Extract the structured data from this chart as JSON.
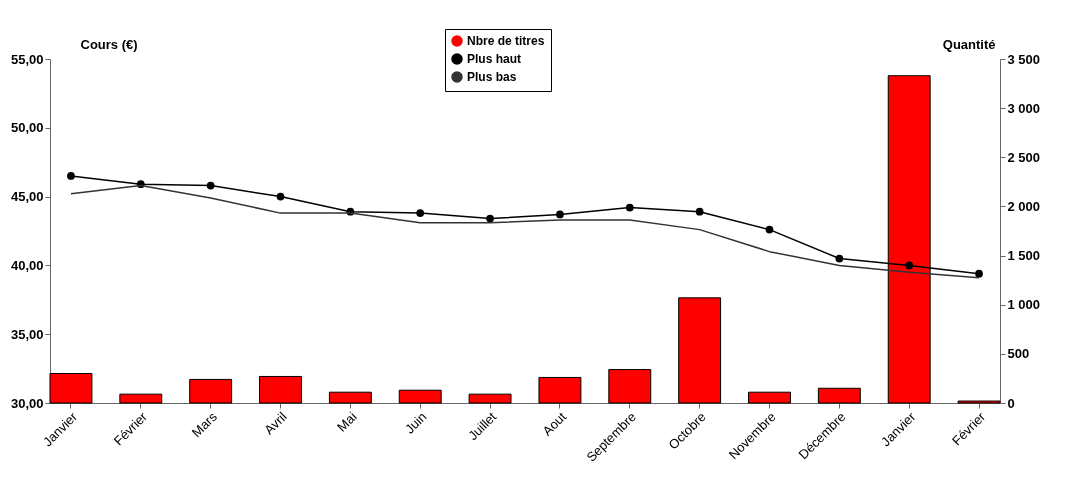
{
  "chart_data": {
    "type": "line",
    "categories": [
      "Janvier",
      "Février",
      "Mars",
      "Avril",
      "Mai",
      "Juin",
      "Juillet",
      "Aout",
      "Septembre",
      "Octobre",
      "Novembre",
      "Décembre",
      "Janvier",
      "Février"
    ],
    "ylabel": "Cours (€)",
    "y2label": "Quantité",
    "series": [
      {
        "name": "Nbre de titres",
        "type": "bar",
        "axis": "y2",
        "color": "#ff0000",
        "values": [
          300,
          90,
          240,
          270,
          110,
          130,
          90,
          260,
          340,
          1070,
          110,
          150,
          3330,
          20
        ]
      },
      {
        "name": "Plus haut",
        "marker": "circle",
        "color": "#000000",
        "values": [
          46.5,
          45.9,
          45.8,
          45.0,
          43.9,
          43.8,
          43.4,
          43.7,
          44.2,
          43.9,
          42.6,
          40.5,
          40.0,
          39.4
        ]
      },
      {
        "name": "Plus bas",
        "marker": "none",
        "color": "#333333",
        "values": [
          45.2,
          45.8,
          44.9,
          43.8,
          43.8,
          43.1,
          43.1,
          43.3,
          43.3,
          42.6,
          41.0,
          40.0,
          39.5,
          39.1
        ]
      }
    ],
    "ylim": [
      30,
      55
    ],
    "yticks": [
      {
        "value": 30,
        "label": "30,00"
      },
      {
        "value": 35,
        "label": "35,00"
      },
      {
        "value": 40,
        "label": "40,00"
      },
      {
        "value": 45,
        "label": "45,00"
      },
      {
        "value": 50,
        "label": "50,00"
      },
      {
        "value": 55,
        "label": "55,00"
      }
    ],
    "y2lim": [
      0,
      3500
    ],
    "y2ticks": [
      0,
      500,
      {
        "value": 1000,
        "label": "1 000"
      },
      {
        "value": 1500,
        "label": "1 500"
      },
      {
        "value": 2000,
        "label": "2 000"
      },
      {
        "value": 2500,
        "label": "2 500"
      },
      {
        "value": 3000,
        "label": "3 000"
      },
      {
        "value": 3500,
        "label": "3 500"
      }
    ],
    "legend": "top",
    "grid": false
  }
}
